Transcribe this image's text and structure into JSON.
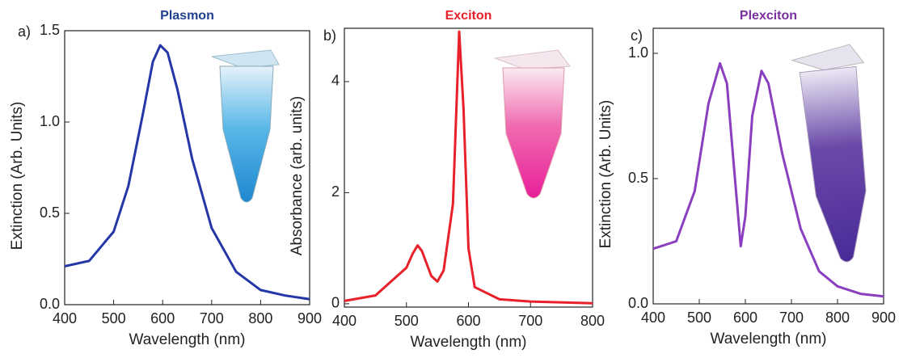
{
  "chart_data": [
    {
      "type": "line",
      "panel_label": "a)",
      "title": "Plasmon",
      "title_color": "#1f3f8f",
      "x_label": "Wavelength (nm)",
      "y_label": "Extinction (Arb. Units)",
      "color": "#2536a6",
      "x": [
        400,
        450,
        500,
        530,
        560,
        580,
        595,
        610,
        630,
        660,
        700,
        750,
        800,
        850,
        900
      ],
      "values": [
        0.21,
        0.24,
        0.4,
        0.65,
        1.05,
        1.33,
        1.42,
        1.38,
        1.18,
        0.8,
        0.42,
        0.18,
        0.08,
        0.05,
        0.03
      ],
      "xlim": [
        400,
        900
      ],
      "xticks": [
        400,
        500,
        600,
        700,
        800,
        900
      ],
      "ylim": [
        0,
        1.5
      ],
      "yticks": [
        {
          "value": 0,
          "label": "0.0"
        },
        0.5,
        {
          "value": 1,
          "label": "1.0"
        },
        1.5
      ]
    },
    {
      "type": "line",
      "panel_label": "b)",
      "title": "Exciton",
      "title_color": "#e8202a",
      "x_label": "Wavelength (nm)",
      "y_label": "Absorbance (arb. units)",
      "color": "#e8202a",
      "x": [
        400,
        450,
        480,
        500,
        510,
        518,
        525,
        540,
        550,
        560,
        575,
        585,
        592,
        600,
        610,
        650,
        700,
        800
      ],
      "values": [
        0.05,
        0.15,
        0.45,
        0.65,
        0.9,
        1.05,
        0.95,
        0.5,
        0.4,
        0.6,
        1.8,
        4.9,
        3.5,
        1.0,
        0.3,
        0.08,
        0.04,
        0.01
      ],
      "xlim": [
        400,
        800
      ],
      "xticks": [
        400,
        500,
        600,
        700,
        800
      ],
      "ylim": [
        -0.06,
        4.96
      ],
      "yticks": [
        0,
        2,
        4
      ]
    },
    {
      "type": "line",
      "panel_label": "c)",
      "title": "Plexciton",
      "title_color": "#7a2fa0",
      "x_label": "Wavelength (nm)",
      "y_label": "Extinction (Arb. Units)",
      "color": "#8a3fc0",
      "x": [
        400,
        450,
        490,
        520,
        545,
        560,
        575,
        590,
        600,
        615,
        635,
        650,
        680,
        720,
        760,
        800,
        850,
        900
      ],
      "values": [
        0.22,
        0.25,
        0.45,
        0.8,
        0.96,
        0.88,
        0.55,
        0.23,
        0.35,
        0.75,
        0.93,
        0.88,
        0.6,
        0.3,
        0.13,
        0.07,
        0.04,
        0.03
      ],
      "xlim": [
        400,
        900
      ],
      "xticks": [
        400,
        500,
        600,
        700,
        800,
        900
      ],
      "ylim": [
        0,
        1.1
      ],
      "yticks": [
        {
          "value": 0,
          "label": "0.0"
        },
        0.5,
        {
          "value": 1,
          "label": "1.0"
        }
      ]
    }
  ]
}
